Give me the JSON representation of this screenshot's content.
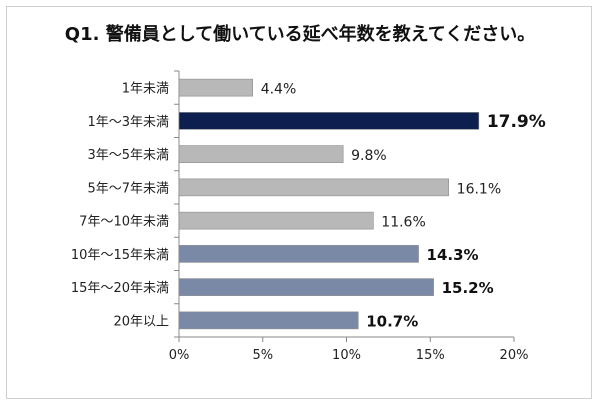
{
  "chart_data": {
    "type": "bar",
    "orientation": "horizontal",
    "title": "Q1. 警備員として働いている延べ年数を教えてください。",
    "categories": [
      "1年未満",
      "1年～3年未満",
      "3年～5年未満",
      "5年～7年未満",
      "7年～10年未満",
      "10年～15年未満",
      "15年～20年未満",
      "20年以上"
    ],
    "values": [
      4.4,
      17.9,
      9.8,
      16.1,
      11.6,
      14.3,
      15.2,
      10.7
    ],
    "value_labels": [
      "4.4%",
      "17.9%",
      "9.8%",
      "16.1%",
      "11.6%",
      "14.3%",
      "15.2%",
      "10.7%"
    ],
    "emphasis": [
      "normal",
      "strong",
      "normal",
      "normal",
      "normal",
      "bold",
      "bold",
      "bold"
    ],
    "bar_colors": [
      "#b8b8b8",
      "#0d1f4f",
      "#b8b8b8",
      "#b8b8b8",
      "#b8b8b8",
      "#7a8aa6",
      "#7a8aa6",
      "#7a8aa6"
    ],
    "xlim": [
      0,
      20
    ],
    "xticks": [
      "0%",
      "5%",
      "10%",
      "15%",
      "20%"
    ],
    "grid": false,
    "legend": "none"
  }
}
